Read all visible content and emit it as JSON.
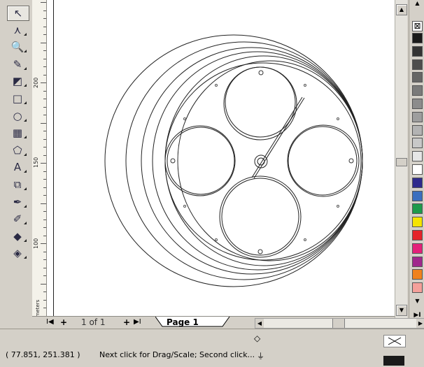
{
  "ruler": {
    "unit": "millimeters",
    "labels": [
      "200",
      "150",
      "100"
    ]
  },
  "tools": [
    {
      "name": "pick-tool",
      "glyph": "↖"
    },
    {
      "name": "shape-tool",
      "glyph": "⋏"
    },
    {
      "name": "zoom-tool",
      "glyph": "🔍"
    },
    {
      "name": "freehand-tool",
      "glyph": "✎"
    },
    {
      "name": "smart-fill-tool",
      "glyph": "◩"
    },
    {
      "name": "rectangle-tool",
      "glyph": "□"
    },
    {
      "name": "ellipse-tool",
      "glyph": "○"
    },
    {
      "name": "polygon-tool",
      "glyph": "▦"
    },
    {
      "name": "basic-shapes-tool",
      "glyph": "⬠"
    },
    {
      "name": "text-tool",
      "glyph": "A"
    },
    {
      "name": "interactive-blend-tool",
      "glyph": "⧉"
    },
    {
      "name": "eyedropper-tool",
      "glyph": "✒"
    },
    {
      "name": "outline-tool",
      "glyph": "✐"
    },
    {
      "name": "fill-tool",
      "glyph": "◆"
    },
    {
      "name": "interactive-fill-tool",
      "glyph": "◈"
    }
  ],
  "pagebar": {
    "first": "I◀",
    "add_before": "+",
    "page_count": "1 of 1",
    "add_after": "+",
    "last": "▶I",
    "page_tab": "Page 1"
  },
  "status": {
    "coords": "( 77.851, 251.381 )",
    "message": "Next click for Drag/Scale; Second click..."
  },
  "palette": {
    "colors": [
      "#ffffff",
      "#1a1a1a",
      "#333333",
      "#4d4d4d",
      "#666666",
      "#7a7a7a",
      "#8c8c8c",
      "#9e9e9e",
      "#b3b3b3",
      "#c8c8c8",
      "#e6e6e6",
      "#ffffff",
      "#2e2a8c",
      "#3b6fbf",
      "#1e9a4b",
      "#f5e400",
      "#e4232a",
      "#e4217a",
      "#a0288c",
      "#f0821e",
      "#f5a09a"
    ]
  }
}
